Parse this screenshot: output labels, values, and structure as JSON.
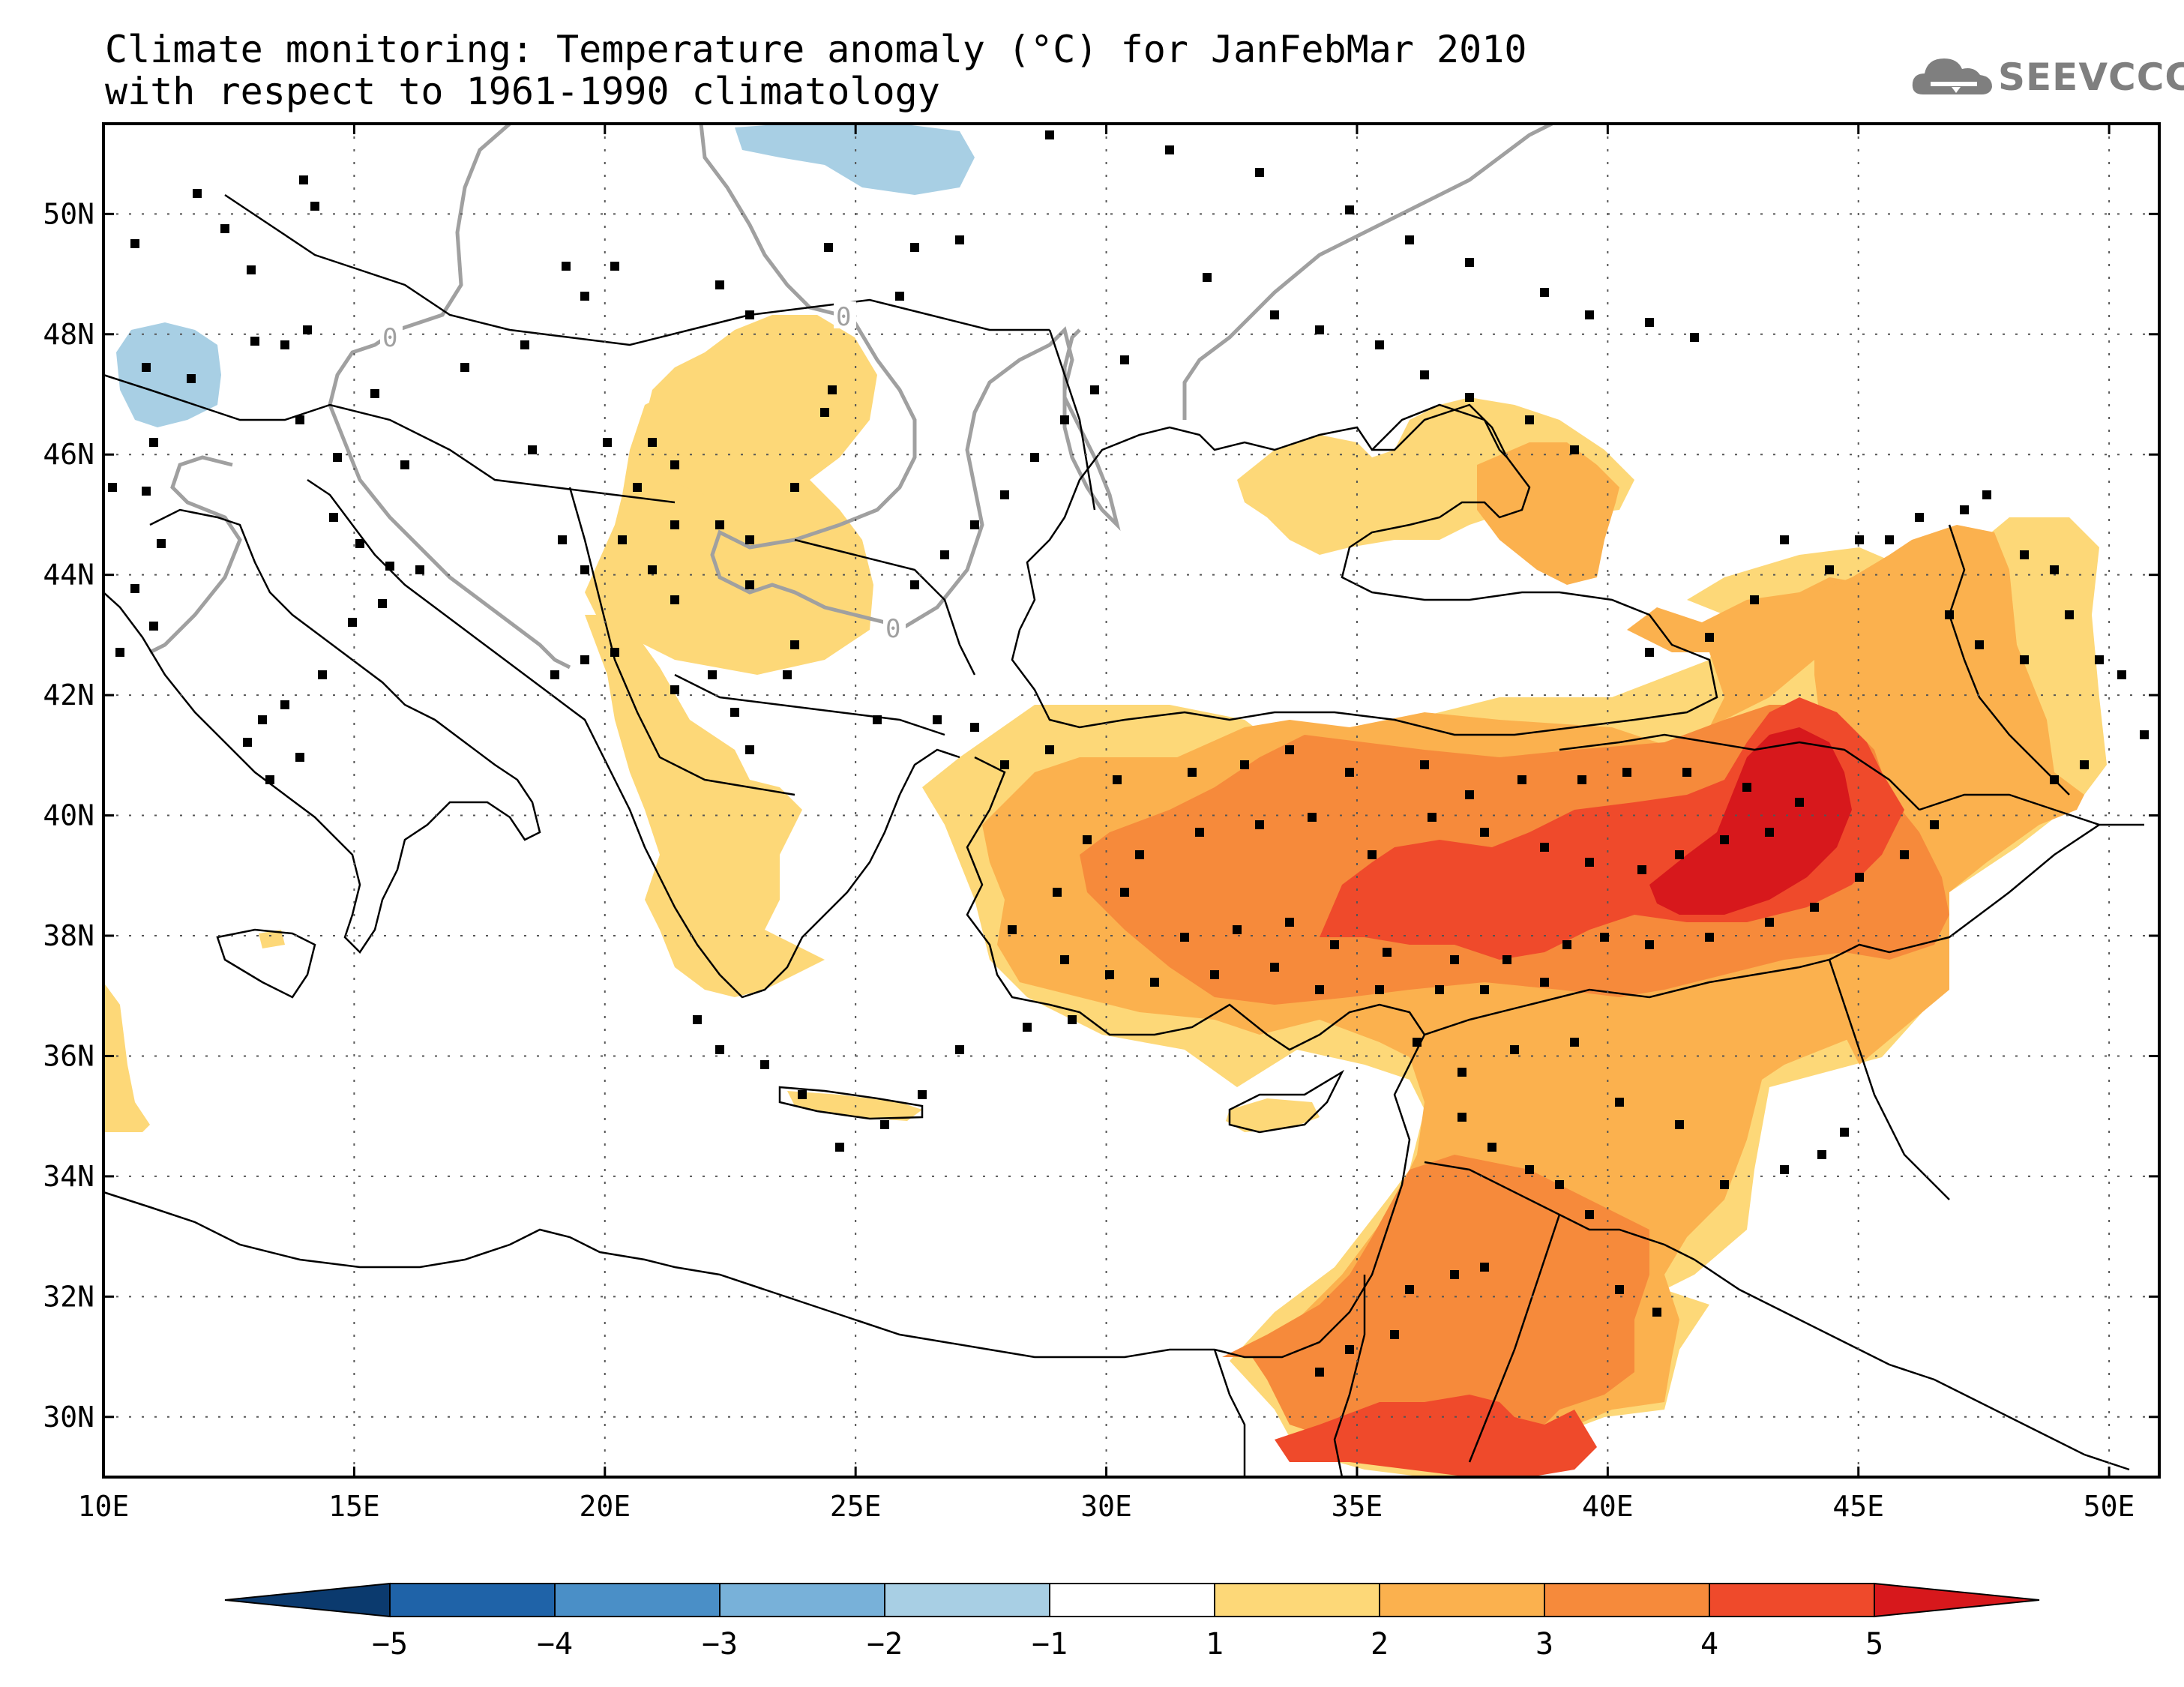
{
  "title": {
    "line1": "Climate monitoring: Temperature anomaly (°C) for JanFebMar 2010",
    "line2": "with respect to 1961-1990 climatology"
  },
  "logo": {
    "text": "SEEVCCC",
    "color": "#7f7f7f"
  },
  "map": {
    "lon_range": [
      10,
      51
    ],
    "lat_range": [
      29,
      51.5
    ],
    "lon_ticks": [
      "10E",
      "15E",
      "20E",
      "25E",
      "30E",
      "35E",
      "40E",
      "45E",
      "50E"
    ],
    "lat_ticks": [
      "30N",
      "32N",
      "34N",
      "36N",
      "38N",
      "40N",
      "42N",
      "44N",
      "46N",
      "48N",
      "50N"
    ],
    "zero_contour_label": "0",
    "gridlines": "dotted"
  },
  "colorbar": {
    "labels": [
      "-5",
      "-4",
      "-3",
      "-2",
      "-1",
      "1",
      "2",
      "3",
      "4",
      "5"
    ],
    "colors": [
      "#0b3a6e",
      "#1f63a8",
      "#4a8fc7",
      "#78b1d9",
      "#a8cfe4",
      "#ffffff",
      "#fdd878",
      "#fbb14e",
      "#f68a3b",
      "#ef4a2b",
      "#d7181c"
    ]
  },
  "anomaly_colors": {
    "1-2": "#fdd878",
    "2-3": "#fbb14e",
    "3-4": "#f68a3b",
    "4-5": "#ef4a2b",
    ">5": "#d7181c",
    "-1--2": "#a8cfe4"
  }
}
